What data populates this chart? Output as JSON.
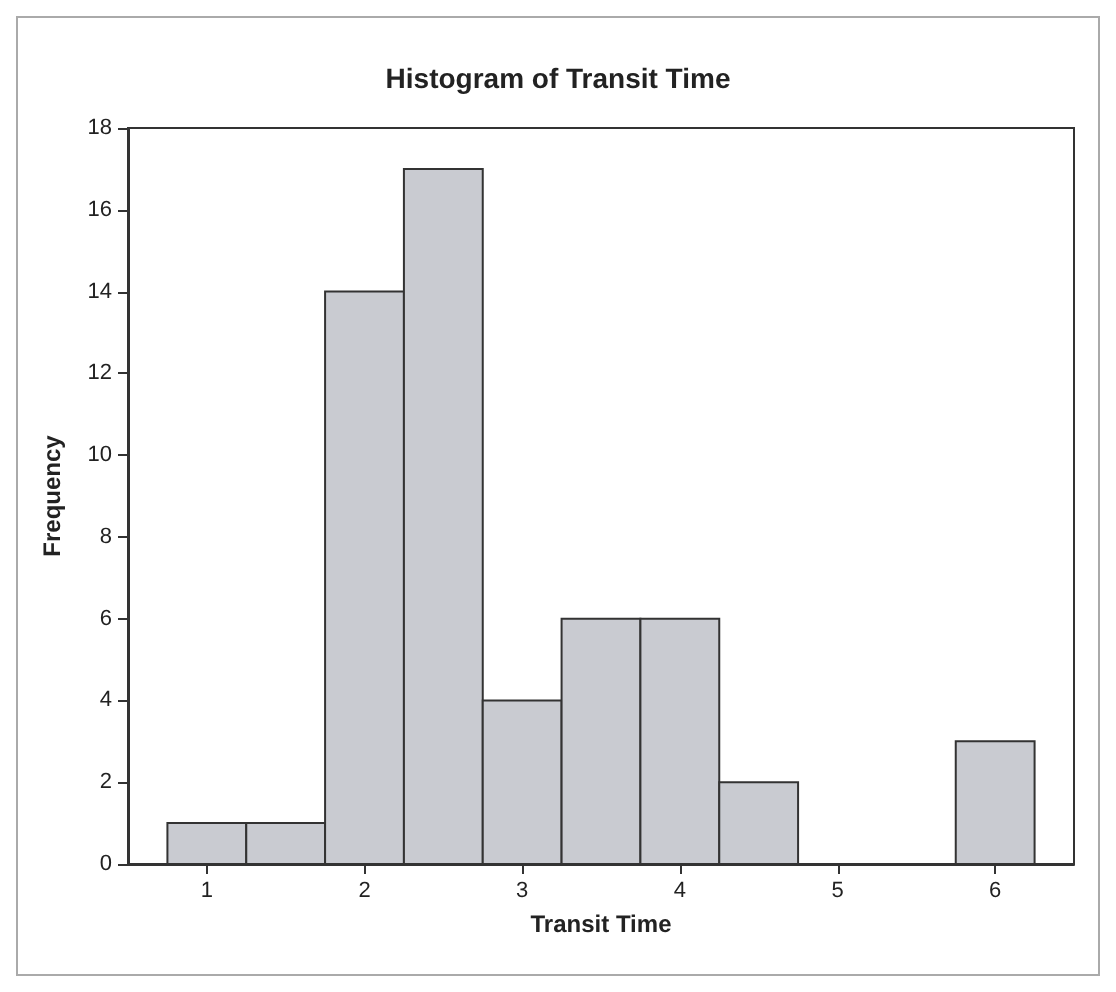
{
  "chart_data": {
    "type": "histogram",
    "title": "Histogram of Transit Time",
    "xlabel": "Transit Time",
    "ylabel": "Frequency",
    "bins": [
      0.75,
      1.25,
      1.75,
      2.25,
      2.75,
      3.25,
      3.75,
      4.25,
      4.75,
      5.25,
      5.75,
      6.25
    ],
    "values": [
      1,
      1,
      14,
      17,
      4,
      6,
      6,
      2,
      0,
      0,
      3
    ],
    "color": "#c9cbd1",
    "xlim": [
      0.5,
      6.5
    ],
    "xticks": [
      1,
      2,
      3,
      4,
      5,
      6
    ],
    "ylim": [
      0,
      18
    ],
    "yticks": [
      0,
      2,
      4,
      6,
      8,
      10,
      12,
      14,
      16,
      18
    ],
    "grid": false
  }
}
